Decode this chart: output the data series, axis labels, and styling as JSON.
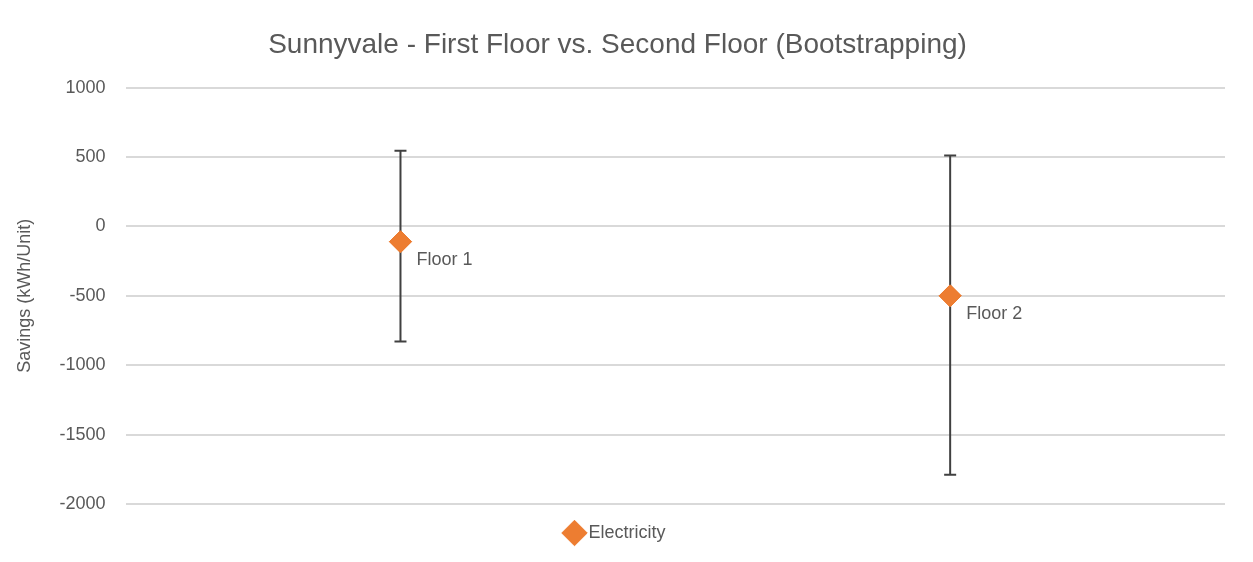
{
  "chart_data": {
    "type": "scatter",
    "title": "Sunnyvale - First Floor vs. Second Floor (Bootstrapping)",
    "ylabel": "Savings (kWh/Unit)",
    "categories": [
      "Floor 1",
      "Floor 2"
    ],
    "series": [
      {
        "name": "Electricity",
        "color": "#ed7d31",
        "values": [
          -110,
          -500
        ],
        "errors": [
          [
            -830,
            545
          ],
          [
            -1790,
            510
          ]
        ]
      }
    ],
    "ylim": [
      -2000,
      1000
    ],
    "yticks": [
      -2000,
      -1500,
      -1000,
      -500,
      0,
      500,
      1000
    ],
    "grid": "y",
    "legend": "bottom",
    "marker": "diamond",
    "tick_labels": "y"
  }
}
